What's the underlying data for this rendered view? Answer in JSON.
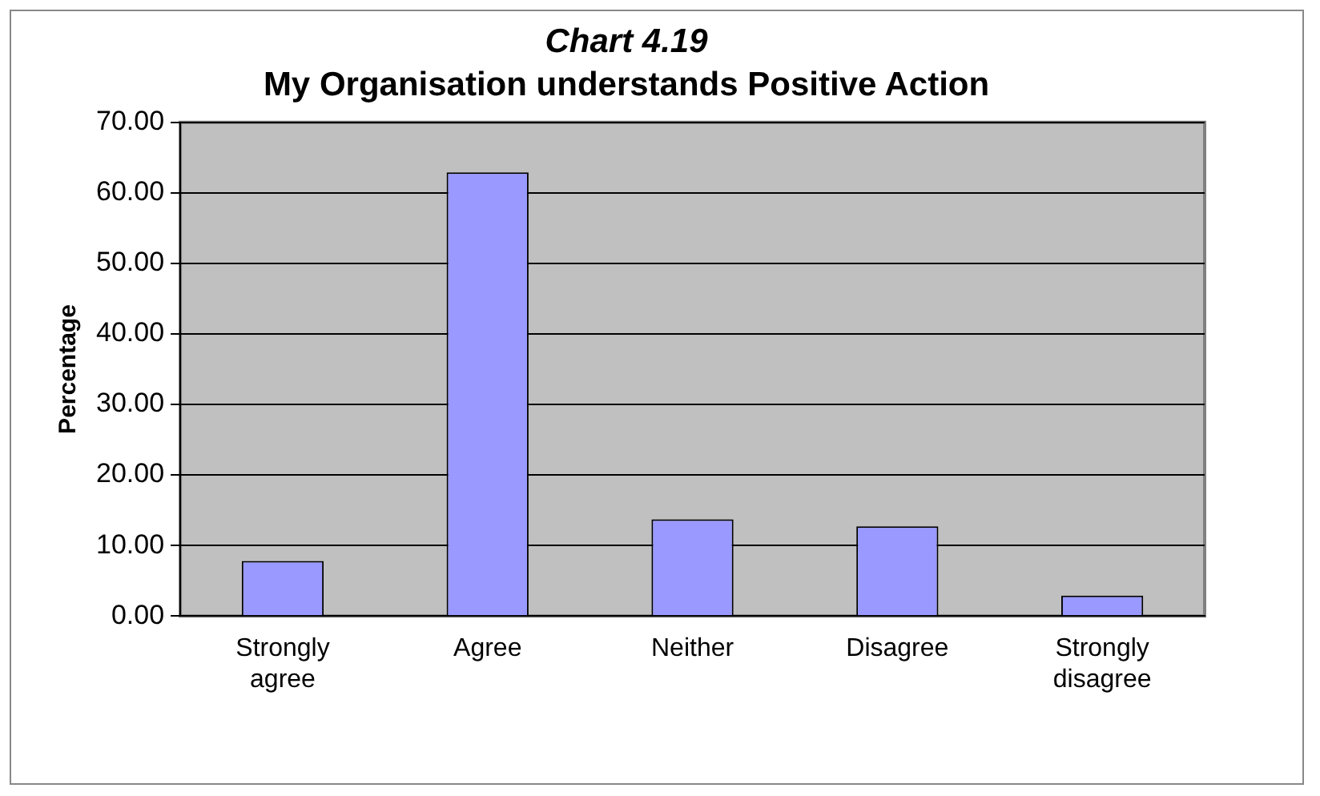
{
  "chart_data": {
    "type": "bar",
    "title": "Chart 4.19",
    "subtitle": "My Organisation understands Positive Action",
    "ylabel": "Percentage",
    "categories": [
      "Strongly agree",
      "Agree",
      "Neither",
      "Disagree",
      "Strongly disagree"
    ],
    "values": [
      7.8,
      62.9,
      13.7,
      12.7,
      2.9
    ],
    "color": "#9999ff",
    "ylim": [
      0,
      70
    ],
    "yticks": [
      {
        "value": 0,
        "label": "0.00"
      },
      {
        "value": 10,
        "label": "10.00"
      },
      {
        "value": 20,
        "label": "20.00"
      },
      {
        "value": 30,
        "label": "30.00"
      },
      {
        "value": 40,
        "label": "40.00"
      },
      {
        "value": 50,
        "label": "50.00"
      },
      {
        "value": 60,
        "label": "60.00"
      },
      {
        "value": 70,
        "label": "70.00"
      }
    ],
    "grid": "y",
    "legend": false
  }
}
